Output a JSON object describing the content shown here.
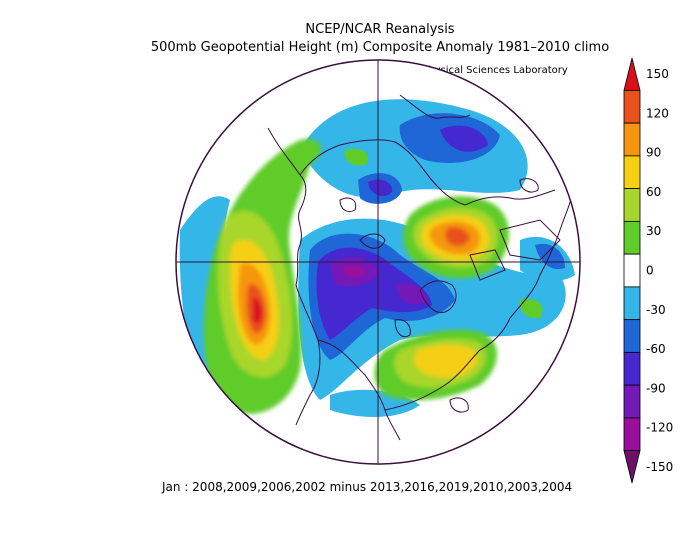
{
  "title": {
    "line1": "NCEP/NCAR Reanalysis",
    "line2": "500mb Geopotential Height (m) Composite Anomaly 1981–2010 climo"
  },
  "credit": "NOAA Physical Sciences Laboratory",
  "footer": "Jan : 2008,2009,2006,2002 minus 2013,2016,2019,2010,2003,2004",
  "map": {
    "projection": "north-polar-stereographic",
    "variable": "500mb geopotential height composite anomaly",
    "units": "m",
    "anomaly_centers": [
      {
        "region": "North Pacific",
        "value": 150,
        "sign": "positive"
      },
      {
        "region": "Eurasia / Siberia",
        "value": 120,
        "sign": "positive"
      },
      {
        "region": "North Atlantic",
        "value": 90,
        "sign": "positive"
      },
      {
        "region": "Greenland / Canadian Arctic",
        "value": -100,
        "sign": "negative"
      },
      {
        "region": "Eastern Siberia / Arctic",
        "value": -80,
        "sign": "negative"
      },
      {
        "region": "Northern Europe",
        "value": -70,
        "sign": "negative"
      }
    ]
  },
  "colorbar": {
    "labels": [
      "150",
      "120",
      "90",
      "60",
      "30",
      "0",
      "-30",
      "-60",
      "-90",
      "-120",
      "-150"
    ],
    "colors": [
      "#d9101a",
      "#e8511c",
      "#f6960f",
      "#f5cf12",
      "#a9d62c",
      "#5fcc2a",
      "#ffffff",
      "#35b6e8",
      "#1f66d6",
      "#4628d0",
      "#7418b8",
      "#990f9c",
      "#6e1069"
    ]
  }
}
